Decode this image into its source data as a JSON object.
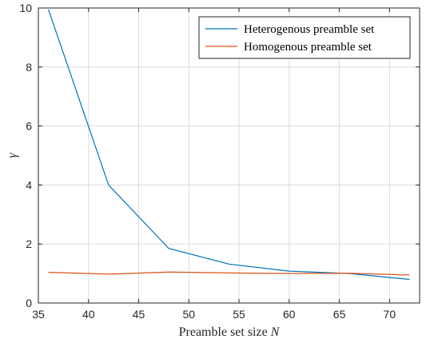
{
  "chart_data": {
    "type": "line",
    "title": "",
    "xlabel": "Preamble set size N",
    "xlabel_main": "Preamble set size ",
    "xlabel_var": "N",
    "ylabel": "γ",
    "xlim": [
      35,
      73
    ],
    "ylim": [
      0,
      10
    ],
    "xticks": [
      35,
      40,
      45,
      50,
      55,
      60,
      65,
      70
    ],
    "yticks": [
      0,
      2,
      4,
      6,
      8,
      10
    ],
    "grid": true,
    "legend_position": "top-right",
    "series": [
      {
        "name": "Heterogenous preamble set",
        "color": "#0072bd",
        "x": [
          36,
          42,
          48,
          54,
          60,
          66,
          72
        ],
        "y": [
          9.95,
          4.0,
          1.85,
          1.32,
          1.08,
          1.0,
          0.8
        ]
      },
      {
        "name": "Homogenous preamble set",
        "color": "#d95319",
        "x": [
          36,
          42,
          48,
          54,
          60,
          66,
          72
        ],
        "y": [
          1.04,
          0.98,
          1.05,
          1.02,
          1.0,
          1.01,
          0.95
        ]
      }
    ]
  }
}
